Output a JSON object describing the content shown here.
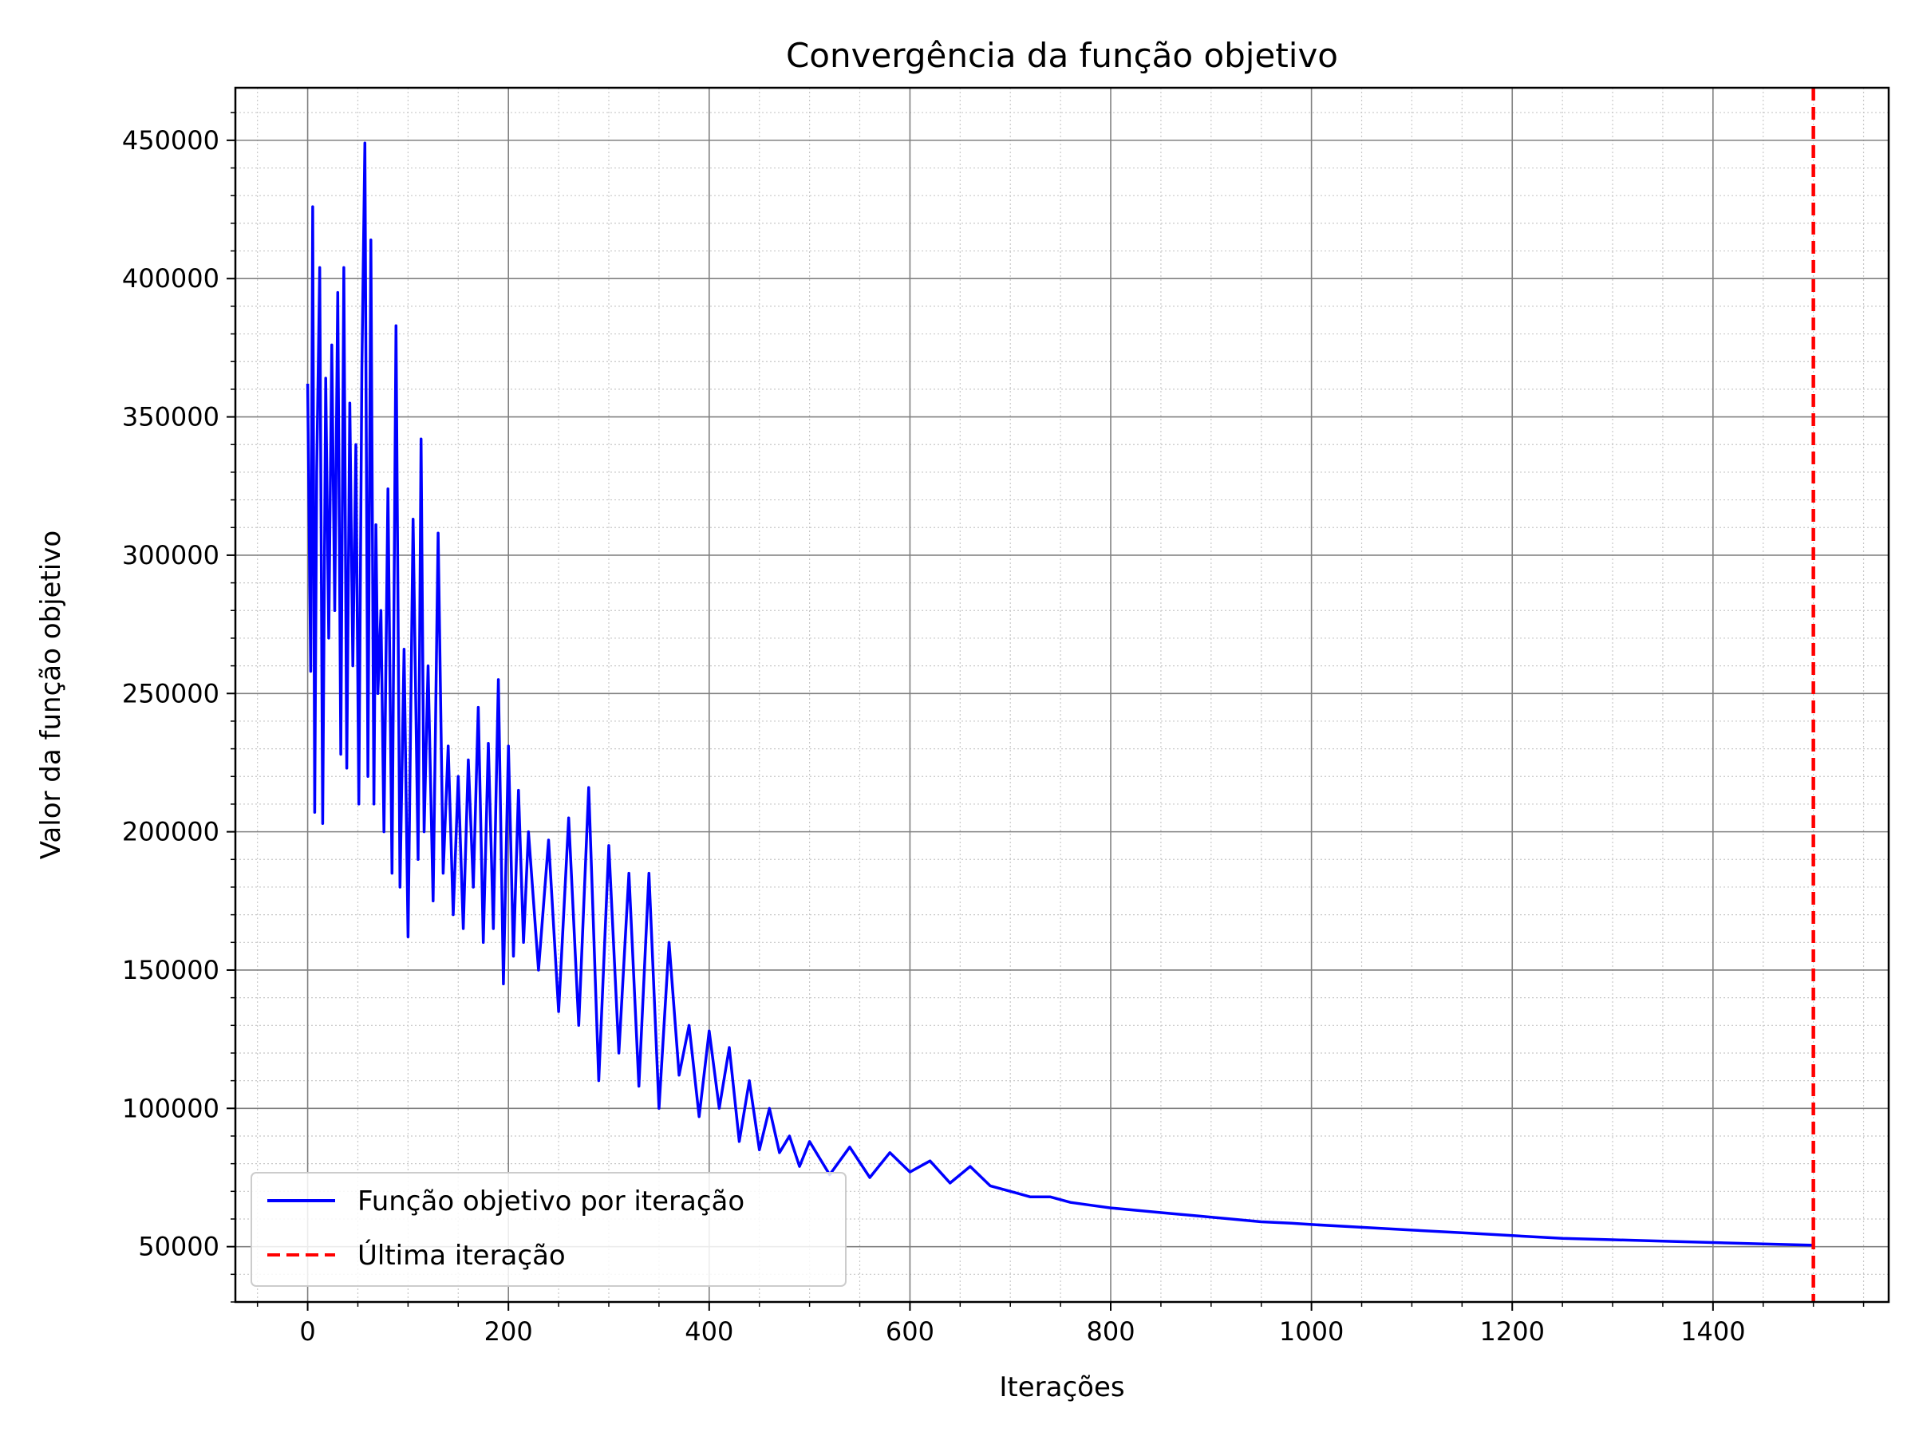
{
  "chart_data": {
    "type": "line",
    "title": "Convergência da função objetivo",
    "xlabel": "Iterações",
    "ylabel": "Valor da função objetivo",
    "xlim": [
      -72,
      1575
    ],
    "ylim": [
      30000,
      469000
    ],
    "x_ticks": [
      0,
      200,
      400,
      600,
      800,
      1000,
      1200,
      1400
    ],
    "y_ticks": [
      50000,
      100000,
      150000,
      200000,
      250000,
      300000,
      350000,
      400000,
      450000
    ],
    "x_tick_labels": [
      "0",
      "200",
      "400",
      "600",
      "800",
      "1000",
      "1200",
      "1400"
    ],
    "y_tick_labels": [
      "50000",
      "100000",
      "150000",
      "200000",
      "250000",
      "300000",
      "350000",
      "400000",
      "450000"
    ],
    "grid": true,
    "minor_grid": true,
    "legend_position": "lower-left",
    "series": [
      {
        "name": "Função objetivo por iteração",
        "color": "#0000ff",
        "style": "solid",
        "x": [
          0,
          3,
          5,
          7,
          9,
          12,
          15,
          18,
          21,
          24,
          27,
          30,
          33,
          36,
          39,
          42,
          45,
          48,
          51,
          54,
          57,
          60,
          63,
          66,
          68,
          70,
          73,
          76,
          80,
          84,
          88,
          92,
          96,
          100,
          105,
          110,
          113,
          116,
          120,
          125,
          130,
          135,
          140,
          145,
          150,
          155,
          160,
          165,
          170,
          175,
          180,
          185,
          190,
          195,
          200,
          205,
          210,
          215,
          220,
          230,
          240,
          250,
          260,
          270,
          280,
          290,
          300,
          310,
          320,
          330,
          340,
          350,
          360,
          370,
          380,
          390,
          400,
          410,
          420,
          430,
          440,
          450,
          460,
          470,
          480,
          490,
          500,
          520,
          540,
          560,
          580,
          600,
          620,
          640,
          660,
          680,
          700,
          720,
          740,
          760,
          780,
          800,
          830,
          860,
          890,
          920,
          950,
          980,
          1000,
          1050,
          1100,
          1150,
          1200,
          1250,
          1300,
          1350,
          1400,
          1450,
          1500
        ],
        "y": [
          362000,
          258000,
          426000,
          207000,
          330000,
          404000,
          203000,
          364000,
          270000,
          376000,
          280000,
          395000,
          228000,
          404000,
          223000,
          355000,
          260000,
          340000,
          210000,
          367000,
          449000,
          220000,
          414000,
          210000,
          311000,
          250000,
          280000,
          200000,
          324000,
          185000,
          383000,
          180000,
          266000,
          162000,
          313000,
          190000,
          342000,
          200000,
          260000,
          175000,
          308000,
          185000,
          231000,
          170000,
          220000,
          165000,
          226000,
          180000,
          245000,
          160000,
          232000,
          165000,
          255000,
          145000,
          231000,
          155000,
          215000,
          160000,
          200000,
          150000,
          197000,
          135000,
          205000,
          130000,
          216000,
          110000,
          195000,
          120000,
          185000,
          108000,
          185000,
          100000,
          160000,
          112000,
          130000,
          97000,
          128000,
          100000,
          122000,
          88000,
          110000,
          85000,
          100000,
          84000,
          90000,
          79000,
          88000,
          76000,
          86000,
          75000,
          84000,
          77000,
          81000,
          73000,
          79000,
          72000,
          70000,
          68000,
          68000,
          66000,
          65000,
          64000,
          63000,
          62000,
          61000,
          60000,
          59000,
          58500,
          58000,
          57000,
          56000,
          55000,
          54000,
          53000,
          52500,
          52000,
          51500,
          51000,
          50500
        ]
      },
      {
        "name": "Última iteração",
        "color": "#ff0000",
        "style": "dashed",
        "x_value": 1500
      }
    ]
  }
}
